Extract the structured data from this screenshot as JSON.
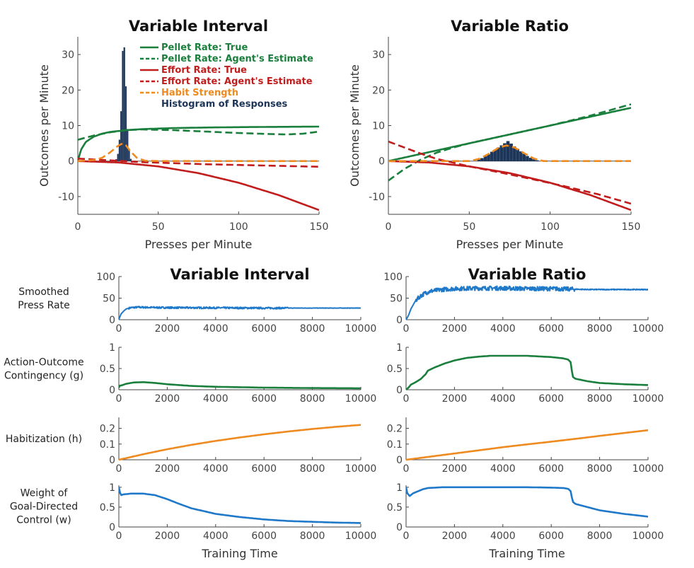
{
  "colors": {
    "green": "#1a7f3c",
    "red": "#c21d1d",
    "orange": "#ee8a1f",
    "navy": "#1c3559",
    "blue": "#1f78c8",
    "axis": "#444444"
  },
  "chart_data": [
    {
      "id": "vi-top",
      "type": "line",
      "title": "Variable Interval",
      "xlabel": "Presses per Minute",
      "ylabel": "Outcomes per Minute",
      "xlim": [
        0,
        150
      ],
      "ylim": [
        -15,
        35
      ],
      "xticks": [
        0,
        50,
        100,
        150
      ],
      "yticks": [
        -10,
        0,
        10,
        20,
        30
      ],
      "legend": {
        "placement": "top-right",
        "entries": [
          {
            "label": "Pellet Rate: True",
            "color": "#1a7f3c",
            "style": "solid"
          },
          {
            "label": "Pellet Rate: Agent's Estimate",
            "color": "#1a7f3c",
            "style": "dashed"
          },
          {
            "label": "Effort Rate: True",
            "color": "#c21d1d",
            "style": "solid"
          },
          {
            "label": "Effort Rate: Agent's Estimate",
            "color": "#c21d1d",
            "style": "dashed"
          },
          {
            "label": "Habit Strength",
            "color": "#ee8a1f",
            "style": "dashed"
          },
          {
            "label": "Histogram of Responses",
            "color": "#1c3559",
            "style": "text"
          }
        ]
      },
      "series": [
        {
          "name": "Pellet Rate: True",
          "color": "#1a7f3c",
          "style": "solid",
          "x": [
            0,
            2,
            5,
            10,
            15,
            20,
            30,
            40,
            60,
            80,
            100,
            120,
            150
          ],
          "y": [
            0,
            3.2,
            5.4,
            6.9,
            7.7,
            8.2,
            8.7,
            9.0,
            9.3,
            9.45,
            9.55,
            9.62,
            9.7
          ]
        },
        {
          "name": "Pellet Rate: Agent's Estimate",
          "color": "#1a7f3c",
          "style": "dashed",
          "x": [
            0,
            10,
            20,
            30,
            40,
            60,
            80,
            100,
            120,
            130,
            140,
            150
          ],
          "y": [
            6,
            7.2,
            8.1,
            8.7,
            8.9,
            8.7,
            8.3,
            7.9,
            7.6,
            7.5,
            7.7,
            8.3
          ]
        },
        {
          "name": "Effort Rate: True",
          "color": "#c21d1d",
          "style": "solid",
          "x": [
            0,
            25,
            50,
            75,
            100,
            125,
            150
          ],
          "y": [
            0,
            -0.4,
            -1.5,
            -3.4,
            -6.1,
            -9.6,
            -13.8
          ]
        },
        {
          "name": "Effort Rate: Agent's Estimate",
          "color": "#c21d1d",
          "style": "dashed",
          "x": [
            0,
            20,
            40,
            60,
            80,
            100,
            120,
            150
          ],
          "y": [
            0.7,
            0.2,
            -0.3,
            -0.6,
            -0.9,
            -1.1,
            -1.3,
            -1.6
          ]
        },
        {
          "name": "Habit Strength",
          "color": "#ee8a1f",
          "style": "dashed",
          "x": [
            0,
            10,
            15,
            20,
            25,
            28,
            30,
            33,
            37,
            42,
            50,
            150
          ],
          "y": [
            0,
            0.3,
            0.9,
            2.4,
            4.3,
            5,
            4.4,
            2.6,
            0.8,
            0.1,
            0,
            0
          ]
        }
      ],
      "histogram": {
        "color": "#1c3559",
        "x": [
          24,
          25,
          26,
          27,
          28,
          29,
          30,
          31,
          32,
          33
        ],
        "y": [
          0.5,
          2,
          6,
          14,
          31,
          32,
          21,
          9,
          3,
          0.6
        ]
      }
    },
    {
      "id": "vr-top",
      "type": "line",
      "title": "Variable Ratio",
      "xlabel": "Presses per Minute",
      "ylabel": "Outcomes per Minute",
      "xlim": [
        0,
        150
      ],
      "ylim": [
        -15,
        35
      ],
      "xticks": [
        0,
        50,
        100,
        150
      ],
      "yticks": [
        -10,
        0,
        10,
        20,
        30
      ],
      "series": [
        {
          "name": "Pellet Rate: True",
          "color": "#1a7f3c",
          "style": "solid",
          "x": [
            0,
            150
          ],
          "y": [
            0,
            15
          ]
        },
        {
          "name": "Pellet Rate: Agent's Estimate",
          "color": "#1a7f3c",
          "style": "dashed",
          "x": [
            0,
            10,
            20,
            30,
            40,
            50,
            75,
            100,
            125,
            150
          ],
          "y": [
            -5.5,
            -2.2,
            0.4,
            2.4,
            3.8,
            5,
            7.5,
            10,
            12.8,
            16
          ]
        },
        {
          "name": "Effort Rate: True",
          "color": "#c21d1d",
          "style": "solid",
          "x": [
            0,
            25,
            50,
            75,
            100,
            125,
            150
          ],
          "y": [
            0,
            -0.4,
            -1.5,
            -3.4,
            -6.1,
            -9.6,
            -13.8
          ]
        },
        {
          "name": "Effort Rate: Agent's Estimate",
          "color": "#c21d1d",
          "style": "dashed",
          "x": [
            0,
            10,
            20,
            30,
            50,
            70,
            90,
            110,
            130,
            150
          ],
          "y": [
            5.5,
            3.8,
            2.1,
            0.6,
            -1.5,
            -3.3,
            -5.2,
            -7.2,
            -9.4,
            -12
          ]
        },
        {
          "name": "Habit Strength",
          "color": "#ee8a1f",
          "style": "dashed",
          "x": [
            0,
            50,
            56,
            62,
            68,
            73,
            78,
            84,
            90,
            96,
            150
          ],
          "y": [
            0,
            0,
            0.6,
            2,
            3.7,
            4.4,
            3.8,
            2.2,
            0.7,
            0,
            0
          ]
        }
      ],
      "histogram": {
        "color": "#1c3559",
        "x": [
          56,
          58,
          60,
          62,
          64,
          66,
          68,
          70,
          72,
          74,
          76,
          78,
          80,
          82,
          84,
          86,
          88,
          90,
          92
        ],
        "y": [
          0.4,
          0.8,
          1.3,
          1.9,
          2.6,
          3.2,
          3.8,
          4.4,
          5.0,
          5.6,
          4.9,
          4.1,
          3.4,
          2.7,
          2.0,
          1.4,
          0.9,
          0.5,
          0.2
        ]
      }
    },
    {
      "id": "vi-press",
      "type": "line",
      "title": "Variable Interval",
      "ylabel": "Smoothed Press Rate",
      "ylim": [
        0,
        100
      ],
      "xlim": [
        0,
        10000
      ],
      "yticks": [
        0,
        50,
        100
      ],
      "series": [
        {
          "name": "",
          "color": "#1f78c8",
          "noise": 2,
          "x": [
            0,
            50,
            100,
            200,
            300,
            500,
            800,
            1200,
            2000,
            4000,
            6000,
            8000,
            10000
          ],
          "y": [
            0,
            8,
            14,
            20,
            25,
            28,
            29,
            28.5,
            28,
            27.5,
            27,
            27,
            27
          ]
        }
      ]
    },
    {
      "id": "vr-press",
      "type": "line",
      "title": "Variable Ratio",
      "ylim": [
        0,
        100
      ],
      "xlim": [
        0,
        10000
      ],
      "yticks": [
        0,
        50,
        100
      ],
      "series": [
        {
          "name": "",
          "color": "#1f78c8",
          "noise": 5,
          "x": [
            0,
            100,
            200,
            400,
            600,
            800,
            1000,
            1500,
            2000,
            3000,
            4000,
            5000,
            6000,
            6800,
            7500,
            8500,
            10000
          ],
          "y": [
            0,
            10,
            25,
            45,
            55,
            62,
            66,
            70,
            72,
            73,
            73,
            72,
            72,
            71,
            70,
            70,
            70
          ]
        }
      ]
    },
    {
      "id": "vi-g",
      "type": "line",
      "ylabel": "Action-Outcome Contingency (g)",
      "ylim": [
        0,
        1
      ],
      "xlim": [
        0,
        10000
      ],
      "yticks": [
        0,
        0.5,
        1
      ],
      "series": [
        {
          "name": "",
          "color": "#1a7f3c",
          "x": [
            0,
            50,
            100,
            300,
            600,
            1000,
            1500,
            2000,
            3000,
            4000,
            5000,
            6000,
            8000,
            10000
          ],
          "y": [
            0.05,
            0.1,
            0.1,
            0.14,
            0.17,
            0.18,
            0.16,
            0.13,
            0.09,
            0.07,
            0.06,
            0.05,
            0.04,
            0.035
          ]
        }
      ]
    },
    {
      "id": "vr-g",
      "type": "line",
      "ylim": [
        0,
        1
      ],
      "xlim": [
        0,
        10000
      ],
      "yticks": [
        0,
        0.5,
        1
      ],
      "series": [
        {
          "name": "",
          "color": "#1a7f3c",
          "x": [
            0,
            100,
            200,
            400,
            600,
            800,
            900,
            1200,
            1600,
            2000,
            2500,
            3000,
            3500,
            4000,
            5000,
            6000,
            6500,
            6700,
            6800,
            6850,
            6900,
            7000,
            7500,
            8000,
            9000,
            10000
          ],
          "y": [
            0,
            0.05,
            0.12,
            0.18,
            0.25,
            0.36,
            0.45,
            0.53,
            0.62,
            0.69,
            0.75,
            0.78,
            0.8,
            0.8,
            0.8,
            0.77,
            0.74,
            0.71,
            0.65,
            0.45,
            0.3,
            0.26,
            0.2,
            0.16,
            0.13,
            0.11
          ]
        }
      ]
    },
    {
      "id": "vi-h",
      "type": "line",
      "ylabel": "Habitization (h)",
      "ylim": [
        0,
        0.27
      ],
      "xlim": [
        0,
        10000
      ],
      "yticks": [
        0,
        0.1,
        0.2
      ],
      "series": [
        {
          "name": "",
          "color": "#ee8a1f",
          "x": [
            0,
            1000,
            2000,
            3000,
            4000,
            5000,
            6000,
            7000,
            8000,
            9000,
            10000
          ],
          "y": [
            0,
            0.035,
            0.067,
            0.095,
            0.12,
            0.142,
            0.162,
            0.18,
            0.196,
            0.21,
            0.222
          ]
        }
      ]
    },
    {
      "id": "vr-h",
      "type": "line",
      "ylim": [
        0,
        0.27
      ],
      "xlim": [
        0,
        10000
      ],
      "yticks": [
        0,
        0.1,
        0.2
      ],
      "series": [
        {
          "name": "",
          "color": "#ee8a1f",
          "x": [
            0,
            1000,
            2000,
            3000,
            4000,
            5000,
            6000,
            7000,
            8000,
            9000,
            10000
          ],
          "y": [
            0,
            0.02,
            0.04,
            0.06,
            0.08,
            0.098,
            0.115,
            0.133,
            0.152,
            0.17,
            0.188
          ]
        }
      ]
    },
    {
      "id": "vi-w",
      "type": "line",
      "ylabel": "Weight of Goal-Directed Control (w)",
      "xlabel": "Training Time",
      "ylim": [
        0,
        1.05
      ],
      "xlim": [
        0,
        10000
      ],
      "yticks": [
        0,
        0.5,
        1
      ],
      "xticks": [
        0,
        2000,
        4000,
        6000,
        8000,
        10000
      ],
      "series": [
        {
          "name": "",
          "color": "#1f78c8",
          "x": [
            0,
            30,
            80,
            200,
            500,
            1000,
            1500,
            2000,
            2500,
            3000,
            4000,
            5000,
            6000,
            7000,
            8000,
            9000,
            10000
          ],
          "y": [
            1,
            0.9,
            0.8,
            0.82,
            0.84,
            0.84,
            0.8,
            0.7,
            0.58,
            0.47,
            0.33,
            0.25,
            0.19,
            0.15,
            0.13,
            0.11,
            0.1
          ]
        }
      ]
    },
    {
      "id": "vr-w",
      "type": "line",
      "xlabel": "Training Time",
      "ylim": [
        0,
        1.05
      ],
      "xlim": [
        0,
        10000
      ],
      "yticks": [
        0,
        0.5,
        1
      ],
      "xticks": [
        0,
        2000,
        4000,
        6000,
        8000,
        10000
      ],
      "series": [
        {
          "name": "",
          "color": "#1f78c8",
          "x": [
            0,
            50,
            150,
            300,
            500,
            700,
            900,
            1500,
            2000,
            3000,
            4000,
            5000,
            6000,
            6500,
            6700,
            6800,
            6850,
            6900,
            7000,
            7500,
            8000,
            9000,
            10000
          ],
          "y": [
            1,
            0.85,
            0.78,
            0.85,
            0.9,
            0.95,
            0.98,
            1,
            1,
            1,
            1,
            1,
            0.99,
            0.98,
            0.96,
            0.9,
            0.75,
            0.63,
            0.58,
            0.5,
            0.42,
            0.33,
            0.26
          ]
        }
      ]
    }
  ]
}
